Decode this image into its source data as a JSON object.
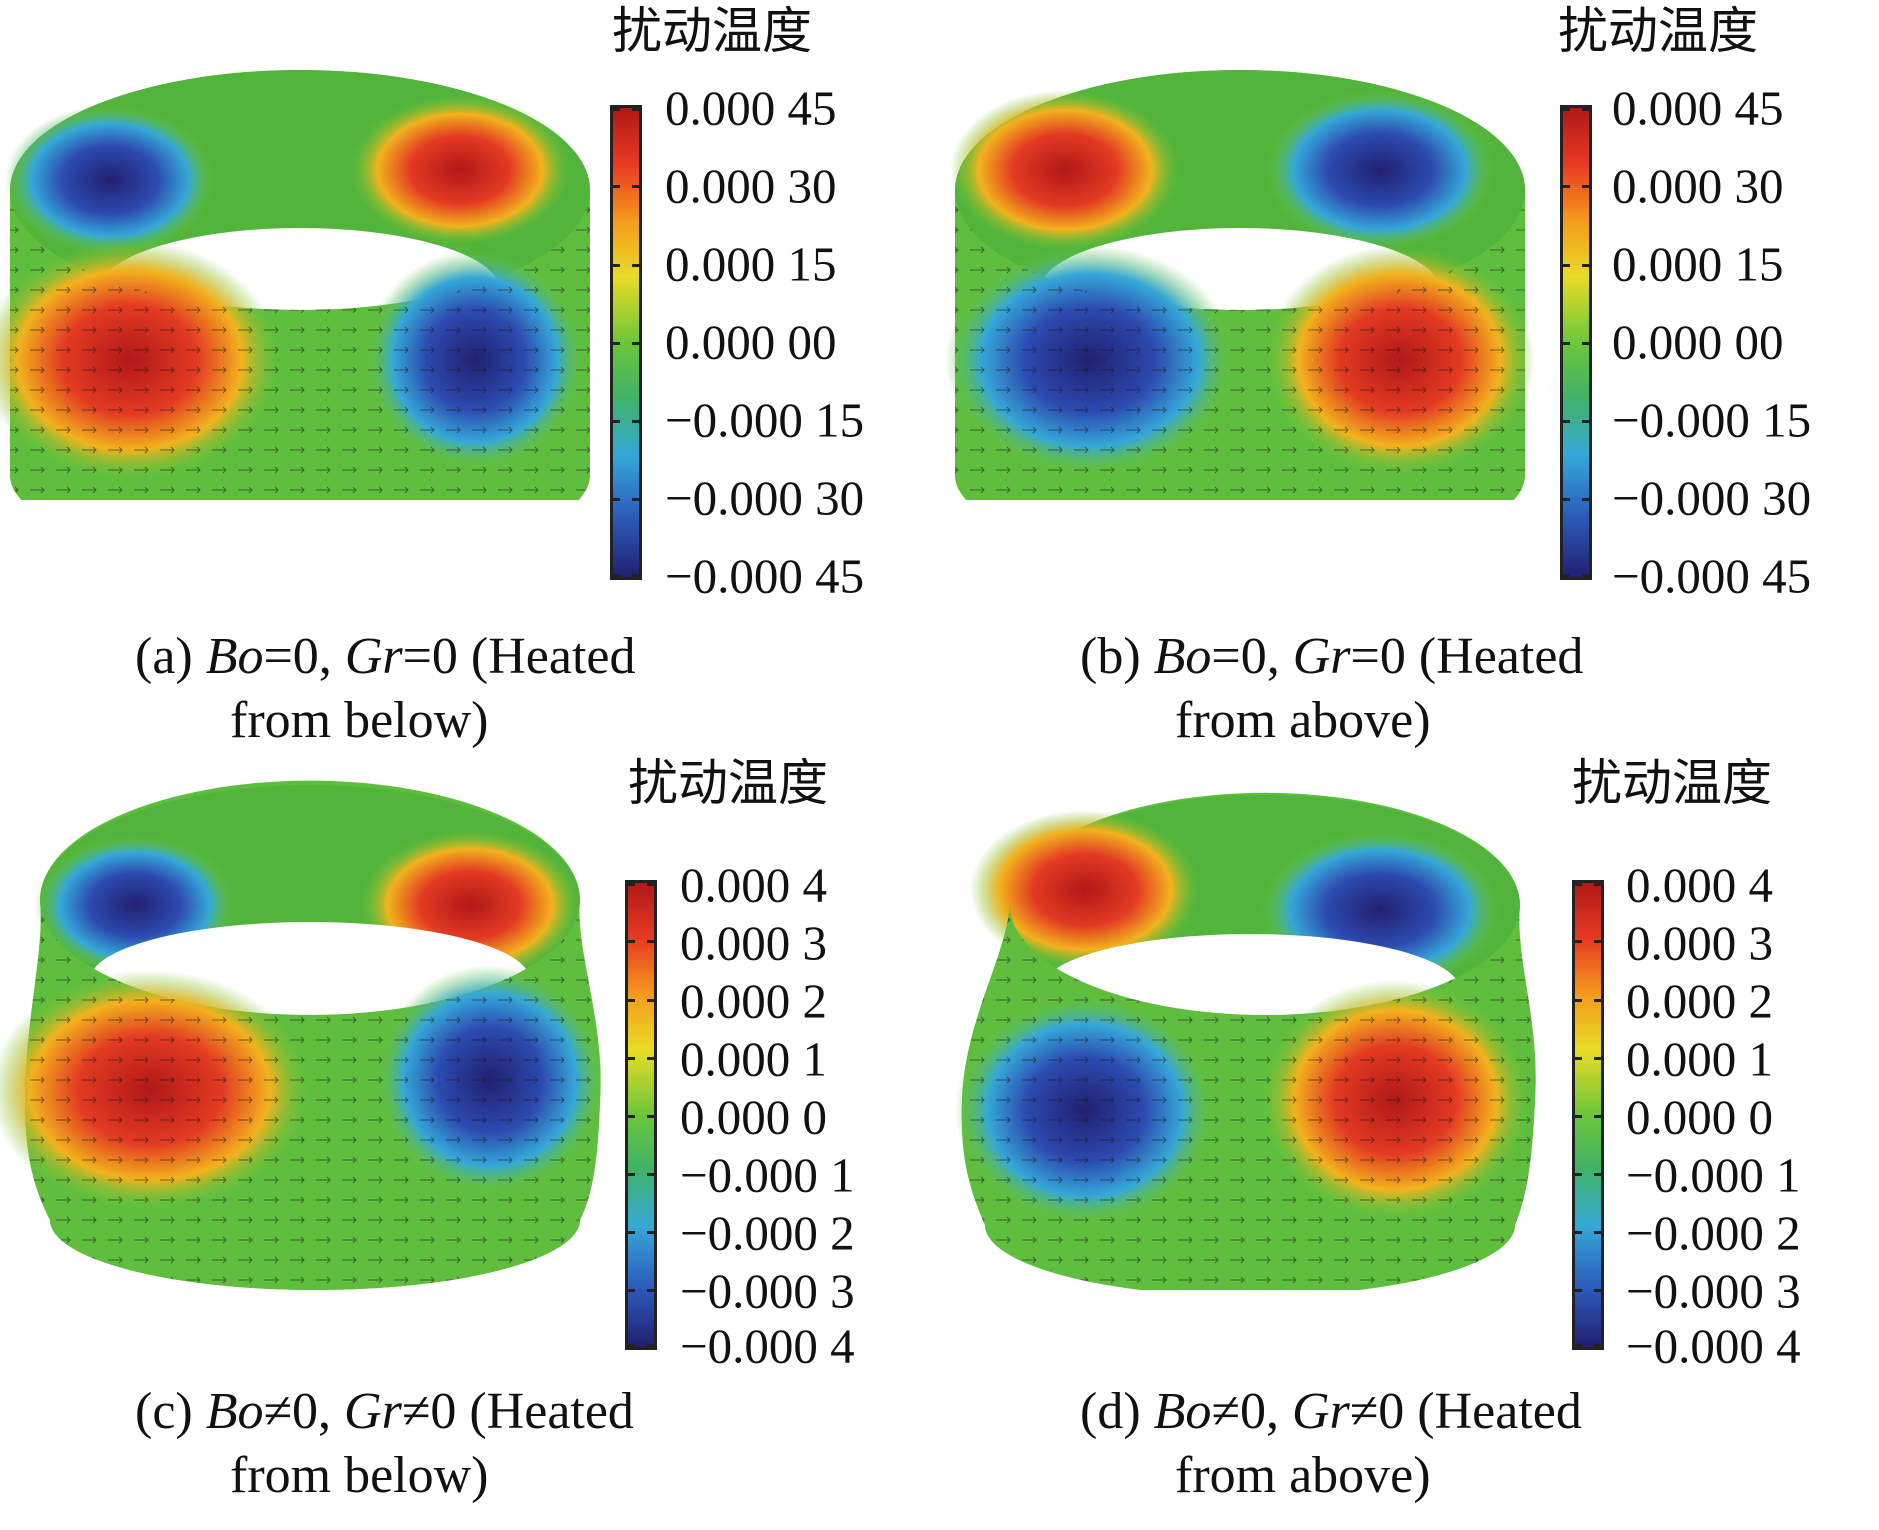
{
  "colorbar_title": "扰动温度",
  "colormap": [
    "#b01818",
    "#e83a22",
    "#f59a1c",
    "#e8dc26",
    "#6cc63a",
    "#3fb26a",
    "#35a8d8",
    "#2c5cbc",
    "#222070"
  ],
  "panels": [
    {
      "ticks": [
        "0.000 45",
        "0.000 30",
        "0.000 15",
        "0.000 00",
        "−0.000 15",
        "−0.000 30",
        "−0.000 45"
      ],
      "caption": {
        "prefix": "(a) ",
        "var1": "Bo",
        "rel1": "=0, ",
        "var2": "Gr",
        "rel2": "=0 (Heated",
        "line2": "from below)"
      },
      "hot_side": "right-back"
    },
    {
      "ticks": [
        "0.000 45",
        "0.000 30",
        "0.000 15",
        "0.000 00",
        "−0.000 15",
        "−0.000 30",
        "−0.000 45"
      ],
      "caption": {
        "prefix": "(b) ",
        "var1": "Bo",
        "rel1": "=0, ",
        "var2": "Gr",
        "rel2": "=0 (Heated",
        "line2": "from above)"
      },
      "hot_side": "left-back"
    },
    {
      "ticks": [
        "0.000 4",
        "0.000 3",
        "0.000 2",
        "0.000 1",
        "0.000 0",
        "−0.000 1",
        "−0.000 2",
        "−0.000 3",
        "−0.000 4"
      ],
      "caption": {
        "prefix": "(c) ",
        "var1": "Bo",
        "rel1": "≠0, ",
        "var2": "Gr",
        "rel2": "≠0 (Heated",
        "line2": "from below)"
      },
      "hot_side": "right-back"
    },
    {
      "ticks": [
        "0.000 4",
        "0.000 3",
        "0.000 2",
        "0.000 1",
        "0.000 0",
        "−0.000 1",
        "−0.000 2",
        "−0.000 3",
        "−0.000 4"
      ],
      "caption": {
        "prefix": "(d) ",
        "var1": "Bo",
        "rel1": "≠0, ",
        "var2": "Gr",
        "rel2": "≠0 (Heated",
        "line2": "from above)"
      },
      "hot_side": "left-back"
    }
  ]
}
